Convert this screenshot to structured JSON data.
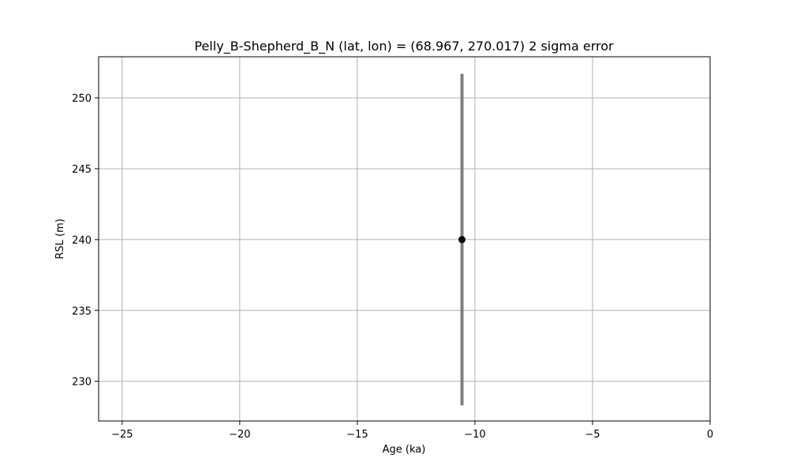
{
  "chart_data": {
    "type": "scatter",
    "title": "Pelly_B-Shepherd_B_N (lat, lon) = (68.967, 270.017)  2 sigma error",
    "xlabel": "Age (ka)",
    "ylabel": "RSL (m)",
    "xlim": [
      -26,
      0
    ],
    "ylim": [
      227.2,
      252.9
    ],
    "xticks": [
      -25,
      -20,
      -15,
      -10,
      -5,
      0
    ],
    "xtick_labels": [
      "−25",
      "−20",
      "−15",
      "−10",
      "−5",
      "0"
    ],
    "yticks": [
      230,
      235,
      240,
      245,
      250
    ],
    "ytick_labels": [
      "230",
      "235",
      "240",
      "245",
      "250"
    ],
    "grid": true,
    "points": [
      {
        "x": -10.55,
        "y": 240.0,
        "yerr_low": 228.3,
        "yerr_high": 251.7
      }
    ],
    "colors": {
      "marker": "#000000",
      "errorbar": "#808080",
      "grid": "#b0b0b0",
      "axes": "#000000"
    }
  }
}
